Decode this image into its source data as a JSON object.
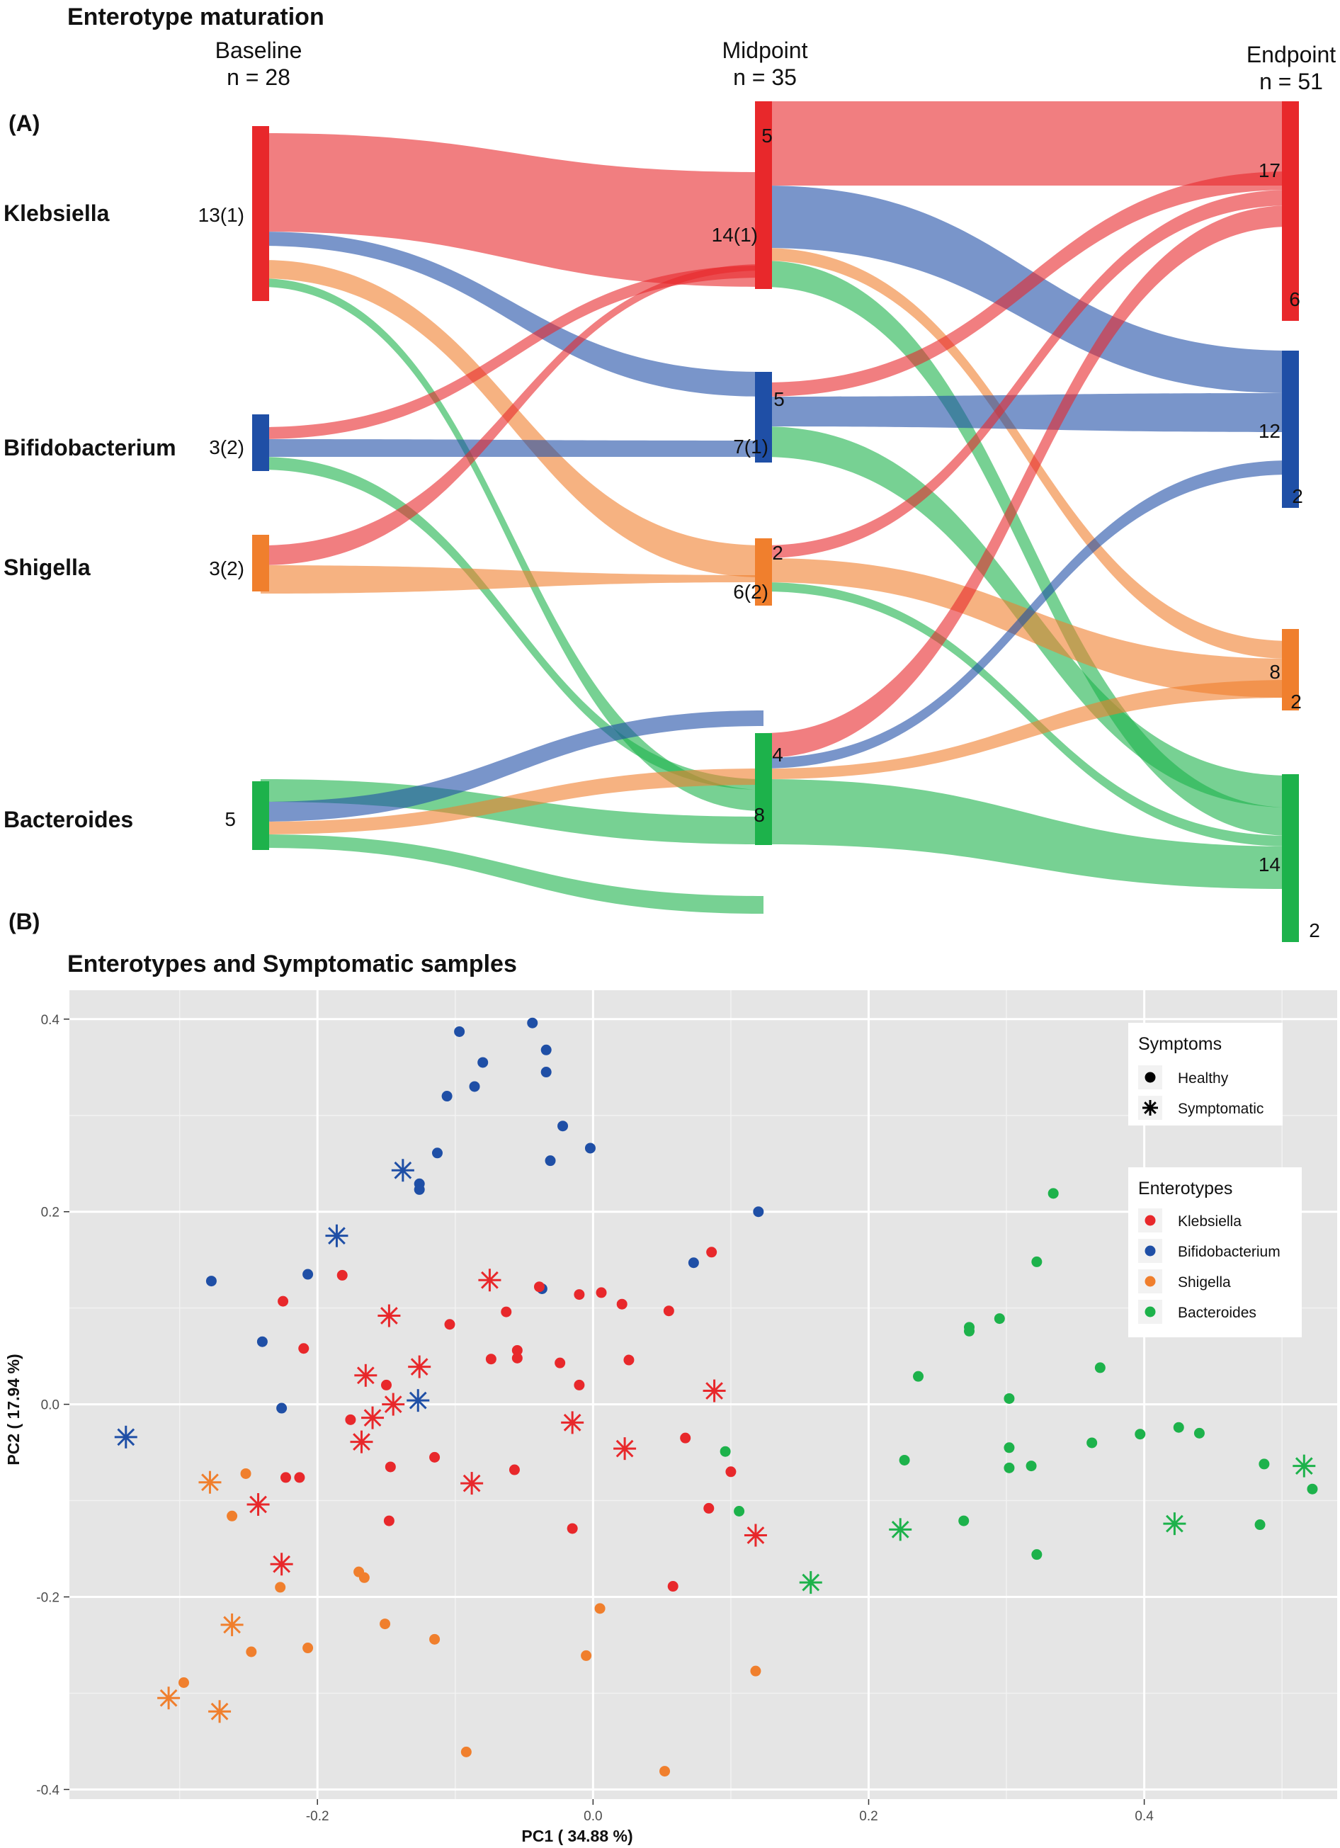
{
  "sankey": {
    "title": "Enterotype maturation",
    "panel_label": "(A)",
    "columns": [
      {
        "name": "Baseline",
        "n": "n = 28"
      },
      {
        "name": "Midpoint",
        "n": "n = 35"
      },
      {
        "name": "Endpoint",
        "n": "n = 51"
      }
    ],
    "rows": [
      "Klebsiella",
      "Bifidobacterium",
      "Shigella",
      "Bacteroides"
    ],
    "colors": {
      "Klebsiella": "#e8282b",
      "Bifidobacterium": "#1f4fa6",
      "Shigella": "#f07f2d",
      "Bacteroides": "#1db24b"
    },
    "baseline_labels": [
      "13(1)",
      "3(2)",
      "3(2)",
      "5"
    ],
    "midpoint_labels": [
      [
        "5",
        "14(1)"
      ],
      [
        "5",
        "7(1)"
      ],
      [
        "2",
        "6(2)"
      ],
      [
        "4",
        "8"
      ]
    ],
    "endpoint_labels": [
      [
        "17",
        "6"
      ],
      [
        "12",
        "2"
      ],
      [
        "8",
        "2"
      ],
      [
        "14",
        "2"
      ]
    ]
  },
  "chart_data": {
    "type": "scatter",
    "title": "Enterotypes and Symptomatic samples",
    "panel_label": "(B)",
    "xlabel": "PC1 ( 34.88 %)",
    "ylabel": "PC2 ( 17.94 %)",
    "xlim": [
      -0.38,
      0.54
    ],
    "ylim": [
      -0.41,
      0.43
    ],
    "xticks": [
      -0.2,
      0.0,
      0.2,
      0.4
    ],
    "xtick_labels": [
      "-0.2",
      "0.0",
      "0.2",
      "0.4"
    ],
    "yticks": [
      -0.4,
      -0.2,
      0.0,
      0.2,
      0.4
    ],
    "ytick_labels": [
      "-0.4",
      "-0.2",
      "0.0",
      "0.2",
      "0.4"
    ],
    "grid": true,
    "legend_symptoms": {
      "title": "Symptoms",
      "items": [
        "Healthy",
        "Symptomatic"
      ]
    },
    "legend_enterotypes": {
      "title": "Enterotypes",
      "items": [
        "Klebsiella",
        "Bifidobacterium",
        "Shigella",
        "Bacteroides"
      ]
    },
    "colors": {
      "Klebsiella": "#e8282b",
      "Bifidobacterium": "#1f4fa6",
      "Shigella": "#f07f2d",
      "Bacteroides": "#1db24b"
    },
    "series": [
      {
        "name": "Bifidobacterium",
        "healthy": [
          [
            -0.097,
            0.387
          ],
          [
            -0.044,
            0.396
          ],
          [
            -0.034,
            0.368
          ],
          [
            -0.08,
            0.355
          ],
          [
            -0.034,
            0.345
          ],
          [
            -0.086,
            0.33
          ],
          [
            -0.106,
            0.32
          ],
          [
            -0.022,
            0.289
          ],
          [
            -0.002,
            0.266
          ],
          [
            -0.113,
            0.261
          ],
          [
            -0.031,
            0.253
          ],
          [
            -0.126,
            0.229
          ],
          [
            -0.126,
            0.223
          ],
          [
            0.12,
            0.2
          ],
          [
            -0.277,
            0.128
          ],
          [
            -0.207,
            0.135
          ],
          [
            -0.24,
            0.065
          ],
          [
            0.073,
            0.147
          ],
          [
            -0.037,
            0.12
          ],
          [
            -0.226,
            -0.004
          ]
        ],
        "symptomatic": [
          [
            -0.138,
            0.243
          ],
          [
            -0.186,
            0.175
          ],
          [
            -0.127,
            0.004
          ],
          [
            -0.339,
            -0.034
          ]
        ]
      },
      {
        "name": "Klebsiella",
        "healthy": [
          [
            -0.182,
            0.134
          ],
          [
            0.086,
            0.158
          ],
          [
            -0.225,
            0.107
          ],
          [
            -0.039,
            0.122
          ],
          [
            -0.01,
            0.114
          ],
          [
            0.006,
            0.116
          ],
          [
            0.021,
            0.104
          ],
          [
            0.055,
            0.097
          ],
          [
            -0.063,
            0.096
          ],
          [
            -0.104,
            0.083
          ],
          [
            -0.21,
            0.058
          ],
          [
            -0.055,
            0.056
          ],
          [
            -0.055,
            0.048
          ],
          [
            -0.074,
            0.047
          ],
          [
            -0.024,
            0.043
          ],
          [
            0.026,
            0.046
          ],
          [
            -0.15,
            0.02
          ],
          [
            -0.01,
            0.02
          ],
          [
            -0.176,
            -0.016
          ],
          [
            -0.147,
            -0.065
          ],
          [
            -0.115,
            -0.055
          ],
          [
            -0.057,
            -0.068
          ],
          [
            0.067,
            -0.035
          ],
          [
            0.1,
            -0.07
          ],
          [
            -0.223,
            -0.076
          ],
          [
            -0.213,
            -0.076
          ],
          [
            -0.148,
            -0.121
          ],
          [
            0.084,
            -0.108
          ],
          [
            -0.015,
            -0.129
          ],
          [
            0.058,
            -0.189
          ]
        ],
        "symptomatic": [
          [
            -0.075,
            0.129
          ],
          [
            -0.148,
            0.092
          ],
          [
            -0.126,
            0.039
          ],
          [
            -0.165,
            0.03
          ],
          [
            -0.16,
            -0.014
          ],
          [
            -0.145,
            0.0
          ],
          [
            -0.168,
            -0.039
          ],
          [
            0.088,
            0.014
          ],
          [
            -0.015,
            -0.019
          ],
          [
            0.023,
            -0.046
          ],
          [
            -0.088,
            -0.082
          ],
          [
            -0.243,
            -0.104
          ],
          [
            -0.226,
            -0.166
          ],
          [
            0.118,
            -0.136
          ]
        ]
      },
      {
        "name": "Shigella",
        "healthy": [
          [
            -0.252,
            -0.072
          ],
          [
            -0.262,
            -0.116
          ],
          [
            -0.227,
            -0.19
          ],
          [
            -0.17,
            -0.174
          ],
          [
            -0.166,
            -0.18
          ],
          [
            -0.151,
            -0.228
          ],
          [
            -0.115,
            -0.244
          ],
          [
            0.005,
            -0.212
          ],
          [
            -0.207,
            -0.253
          ],
          [
            -0.248,
            -0.257
          ],
          [
            -0.005,
            -0.261
          ],
          [
            0.118,
            -0.277
          ],
          [
            -0.297,
            -0.289
          ],
          [
            -0.092,
            -0.361
          ],
          [
            0.052,
            -0.381
          ]
        ],
        "symptomatic": [
          [
            -0.278,
            -0.081
          ],
          [
            -0.262,
            -0.229
          ],
          [
            -0.308,
            -0.305
          ],
          [
            -0.271,
            -0.319
          ]
        ]
      },
      {
        "name": "Bacteroides",
        "healthy": [
          [
            0.334,
            0.219
          ],
          [
            0.322,
            0.148
          ],
          [
            0.273,
            0.08
          ],
          [
            0.273,
            0.076
          ],
          [
            0.295,
            0.089
          ],
          [
            0.368,
            0.038
          ],
          [
            0.236,
            0.029
          ],
          [
            0.302,
            0.006
          ],
          [
            0.302,
            -0.045
          ],
          [
            0.362,
            -0.04
          ],
          [
            0.397,
            -0.031
          ],
          [
            0.425,
            -0.024
          ],
          [
            0.44,
            -0.03
          ],
          [
            0.487,
            -0.062
          ],
          [
            0.522,
            -0.088
          ],
          [
            0.096,
            -0.049
          ],
          [
            0.226,
            -0.058
          ],
          [
            0.302,
            -0.066
          ],
          [
            0.318,
            -0.064
          ],
          [
            0.106,
            -0.111
          ],
          [
            0.269,
            -0.121
          ],
          [
            0.322,
            -0.156
          ],
          [
            0.484,
            -0.125
          ]
        ],
        "symptomatic": [
          [
            0.158,
            -0.185
          ],
          [
            0.223,
            -0.13
          ],
          [
            0.422,
            -0.124
          ],
          [
            0.516,
            -0.064
          ]
        ]
      }
    ]
  }
}
